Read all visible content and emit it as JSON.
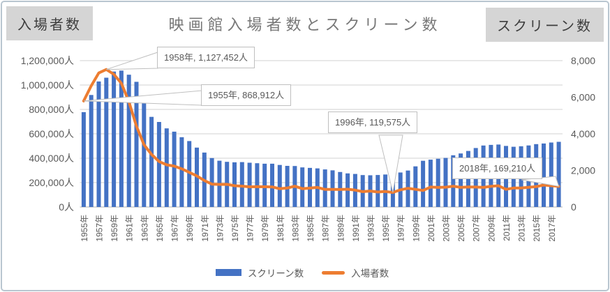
{
  "header": {
    "title": "映画館入場者数とスクリーン数",
    "left_axis_badge": "入場者数",
    "right_axis_badge": "スクリーン数"
  },
  "legend": {
    "items": [
      {
        "label": "スクリーン数",
        "swatch": "bar",
        "color": "#4472C4"
      },
      {
        "label": "入場者数",
        "swatch": "line",
        "color": "#ED7D31"
      }
    ],
    "position": "bottom"
  },
  "annotations": [
    {
      "id": "a1958",
      "label": "1958年, 1,127,452人",
      "year": 1958,
      "value": 1127452
    },
    {
      "id": "a1955",
      "label": "1955年, 868,912人",
      "year": 1955,
      "value": 868912
    },
    {
      "id": "a1996",
      "label": "1996年, 119,575人",
      "year": 1996,
      "value": 119575
    },
    {
      "id": "a2018",
      "label": "2018年, 169,210人",
      "year": 2018,
      "value": 169210
    }
  ],
  "colors": {
    "bar": "#4472C4",
    "line": "#ED7D31",
    "grid": "#D9D9D9",
    "axis_line": "#BFBFBF",
    "axis_text": "#595959",
    "title_text": "#787878",
    "badge_bg": "#D5D5D5",
    "badge_text": "#3D3D3D",
    "callout_border": "#BFBFBF",
    "frame_border": "#B9C6D0"
  },
  "chart_data": {
    "type": "combo-bar-line",
    "title": "映画館入場者数とスクリーン数",
    "grid": "horizontal",
    "legend_position": "bottom",
    "categories": [
      1955,
      1956,
      1957,
      1958,
      1959,
      1960,
      1961,
      1962,
      1963,
      1964,
      1965,
      1966,
      1967,
      1968,
      1969,
      1970,
      1971,
      1972,
      1973,
      1974,
      1975,
      1976,
      1977,
      1978,
      1979,
      1980,
      1981,
      1982,
      1983,
      1984,
      1985,
      1986,
      1987,
      1988,
      1989,
      1990,
      1991,
      1992,
      1993,
      1994,
      1995,
      1996,
      1997,
      1998,
      1999,
      2000,
      2001,
      2002,
      2003,
      2004,
      2005,
      2006,
      2007,
      2008,
      2009,
      2010,
      2011,
      2012,
      2013,
      2014,
      2015,
      2016,
      2017,
      2018
    ],
    "series": [
      {
        "name": "スクリーン数",
        "type": "bar",
        "axis": "right",
        "color": "#4472C4",
        "values": [
          5184,
          6123,
          6862,
          7067,
          7401,
          7457,
          7231,
          6842,
          5696,
          4927,
          4649,
          4296,
          4119,
          3814,
          3602,
          3246,
          2974,
          2673,
          2530,
          2468,
          2443,
          2453,
          2420,
          2392,
          2364,
          2364,
          2298,
          2246,
          2239,
          2162,
          2137,
          2109,
          2053,
          2005,
          1912,
          1836,
          1804,
          1744,
          1734,
          1747,
          1776,
          1828,
          1884,
          1993,
          2221,
          2524,
          2585,
          2635,
          2681,
          2825,
          2926,
          3062,
          3221,
          3359,
          3396,
          3412,
          3339,
          3290,
          3318,
          3364,
          3437,
          3472,
          3525,
          3561
        ]
      },
      {
        "name": "入場者数",
        "type": "line",
        "axis": "left",
        "color": "#ED7D31",
        "values": [
          868912,
          993875,
          1098882,
          1127452,
          1088111,
          1014364,
          863430,
          662279,
          511121,
          431454,
          372676,
          345811,
          335067,
          313398,
          283980,
          254799,
          216754,
          187391,
          185324,
          185738,
          174020,
          171020,
          165190,
          166041,
          165463,
          164422,
          149694,
          155249,
          170112,
          150498,
          155130,
          160759,
          143930,
          144825,
          143573,
          145500,
          138330,
          125600,
          130720,
          122990,
          127040,
          119575,
          140700,
          153100,
          144760,
          135390,
          163280,
          160770,
          162347,
          170092,
          160453,
          164585,
          163193,
          160491,
          169297,
          174358,
          144726,
          155159,
          155888,
          161116,
          166630,
          180189,
          174483,
          169210
        ]
      }
    ],
    "y_left": {
      "title": "入場者数",
      "unit": "人",
      "min": 0,
      "max": 1200000,
      "tick_labels": [
        "0人",
        "200,000人",
        "400,000人",
        "600,000人",
        "800,000人",
        "1,000,000人",
        "1,200,000人"
      ]
    },
    "y_right": {
      "title": "スクリーン数",
      "min": 0,
      "max": 8000,
      "tick_labels": [
        "0",
        "2,000",
        "4,000",
        "6,000",
        "8,000"
      ]
    },
    "x_tick_labels": [
      "1955年",
      "1957年",
      "1959年",
      "1961年",
      "1963年",
      "1965年",
      "1967年",
      "1969年",
      "1971年",
      "1973年",
      "1975年",
      "1977年",
      "1979年",
      "1981年",
      "1983年",
      "1985年",
      "1987年",
      "1989年",
      "1991年",
      "1993年",
      "1995年",
      "1997年",
      "1999年",
      "2001年",
      "2003年",
      "2005年",
      "2007年",
      "2009年",
      "2011年",
      "2013年",
      "2015年",
      "2017年"
    ]
  }
}
